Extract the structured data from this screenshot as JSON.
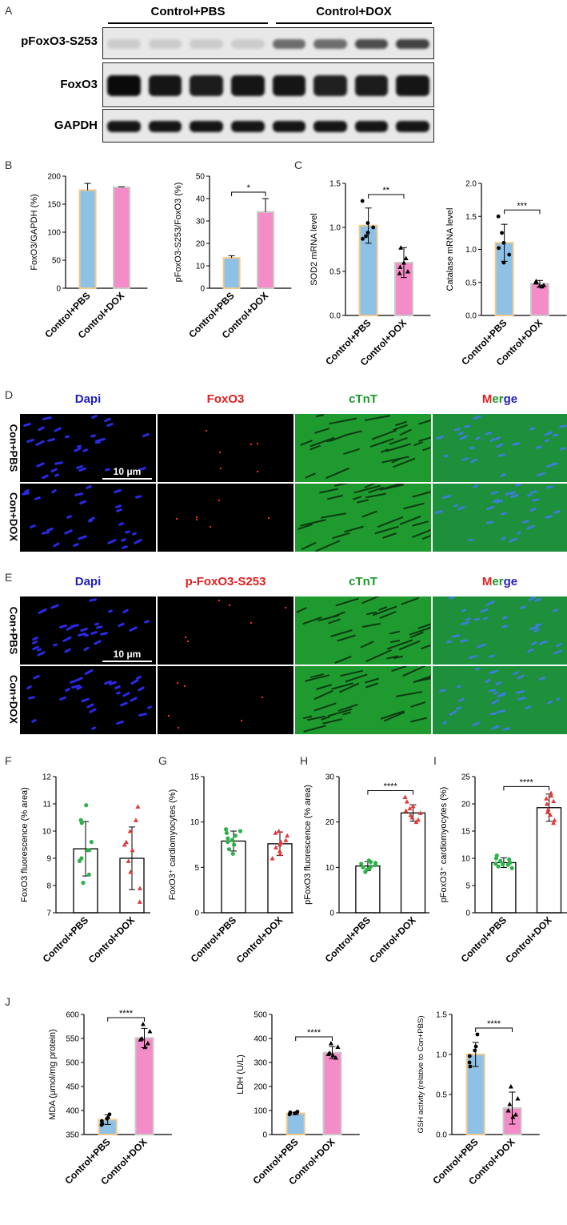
{
  "panels": {
    "A": "A",
    "B": "B",
    "C": "C",
    "D": "D",
    "E": "E",
    "F": "F",
    "G": "G",
    "H": "H",
    "I": "I",
    "J": "J"
  },
  "colors": {
    "pbs": "#8ec1e6",
    "dox": "#f48cc7",
    "pbs_edge": "#f0c98b",
    "dox_edge": "#c9c9c9",
    "green": "#2db24a",
    "red": "#e23a3a",
    "blue_dapi": "#1f1fbf",
    "cTnT_green": "#1f9a2f"
  },
  "blot": {
    "groups": [
      "Control+PBS",
      "Control+DOX"
    ],
    "rows": [
      {
        "label": "pFoxO3-S253",
        "intensity": [
          0.12,
          0.12,
          0.12,
          0.12,
          0.55,
          0.55,
          0.7,
          0.75
        ]
      },
      {
        "label": "FoxO3",
        "intensity": [
          1,
          0.95,
          0.92,
          0.95,
          0.95,
          0.9,
          0.92,
          0.95
        ]
      },
      {
        "label": "GAPDH",
        "intensity": [
          0.95,
          0.95,
          0.95,
          0.95,
          0.95,
          0.95,
          0.95,
          0.95
        ]
      }
    ]
  },
  "micro": {
    "D": {
      "headers": [
        "Dapi",
        "FoxO3",
        "cTnT",
        "Merge"
      ],
      "rows": [
        "Con+PBS",
        "Con+DOX"
      ],
      "scalebar": "10 μm"
    },
    "E": {
      "headers": [
        "Dapi",
        "p-FoxO3-S253",
        "cTnT",
        "Merge"
      ],
      "rows": [
        "Con+PBS",
        "Con+DOX"
      ],
      "scalebar": "10 μm"
    }
  },
  "chart_data": [
    {
      "id": "B1",
      "type": "bar",
      "categories": [
        "Control+PBS",
        "Control+DOX"
      ],
      "values": [
        175,
        180
      ],
      "errors": [
        12,
        1
      ],
      "ylabel": "FoxO3/GAPDH (%)",
      "ylim": [
        0,
        200
      ],
      "yticks": [
        0,
        50,
        100,
        150,
        200
      ],
      "sig": ""
    },
    {
      "id": "B2",
      "type": "bar",
      "categories": [
        "Control+PBS",
        "Control+DOX"
      ],
      "values": [
        13.5,
        34
      ],
      "errors": [
        1,
        6
      ],
      "ylabel": "pFoxO3-S253/FoxO3 (%)",
      "ylim": [
        0,
        50
      ],
      "yticks": [
        0,
        10,
        20,
        30,
        40,
        50
      ],
      "sig": "*"
    },
    {
      "id": "C1",
      "type": "bar",
      "categories": [
        "Control+PBS",
        "Control+DOX"
      ],
      "values": [
        1.02,
        0.6
      ],
      "errors": [
        0.2,
        0.17
      ],
      "ylabel": "SOD2 mRNA level",
      "ylim": [
        0,
        1.5
      ],
      "yticks": [
        0.0,
        0.5,
        1.0,
        1.5
      ],
      "sig": "**",
      "points": [
        [
          1.3,
          0.94,
          0.87,
          1.05,
          1.0,
          0.9
        ],
        [
          0.77,
          0.6,
          0.55,
          0.5,
          0.65,
          0.48
        ]
      ]
    },
    {
      "id": "C2",
      "type": "bar",
      "categories": [
        "Control+PBS",
        "Control+DOX"
      ],
      "values": [
        1.1,
        0.48
      ],
      "errors": [
        0.28,
        0.05
      ],
      "ylabel": "Catalase mRNA level",
      "ylim": [
        0,
        2.0
      ],
      "yticks": [
        0.0,
        0.5,
        1.0,
        1.5,
        2.0
      ],
      "sig": "***",
      "points": [
        [
          1.5,
          1.1,
          1.02,
          0.8,
          0.92,
          1.25
        ],
        [
          0.5,
          0.45,
          0.52,
          0.46,
          0.44,
          0.5
        ]
      ]
    },
    {
      "id": "F",
      "type": "bar",
      "categories": [
        "Control+PBS",
        "Control+DOX"
      ],
      "values": [
        9.35,
        9.0
      ],
      "errors": [
        1.0,
        1.15
      ],
      "ylabel": "FoxO3 fluorescence (% area)",
      "ylim": [
        7,
        12
      ],
      "yticks": [
        7,
        8,
        9,
        10,
        11,
        12
      ],
      "sig": "",
      "points": [
        [
          10.95,
          10.4,
          10.3,
          9.3,
          9.6,
          8.4,
          8.1,
          9.0,
          9.3,
          8.9
        ],
        [
          10.9,
          10.4,
          10.0,
          9.5,
          9.6,
          9.3,
          8.9,
          8.5,
          7.9,
          7.4
        ]
      ]
    },
    {
      "id": "G",
      "type": "bar",
      "categories": [
        "Control+PBS",
        "Control+DOX"
      ],
      "values": [
        7.9,
        7.6
      ],
      "errors": [
        1.1,
        1.3
      ],
      "ylabel": "FoxO3⁺ cardiomyocytes (%)",
      "ylim": [
        0,
        15
      ],
      "yticks": [
        0,
        5,
        10,
        15
      ],
      "sig": "",
      "points": [
        [
          9.2,
          8.8,
          8.5,
          8.0,
          7.8,
          7.5,
          7.0,
          6.5,
          8.2,
          9.0
        ],
        [
          9.0,
          8.5,
          8.0,
          7.5,
          7.2,
          6.8,
          6.0,
          7.8,
          8.8,
          6.5
        ]
      ]
    },
    {
      "id": "H",
      "type": "bar",
      "categories": [
        "Control+PBS",
        "Control+DOX"
      ],
      "values": [
        10.3,
        22.0
      ],
      "errors": [
        1.0,
        1.8
      ],
      "ylabel": "pFoxO3 fluorescence (% area)",
      "ylim": [
        0,
        30
      ],
      "yticks": [
        0,
        10,
        20,
        30
      ],
      "sig": "****",
      "points": [
        [
          11.5,
          11,
          10.5,
          10,
          9.5,
          9,
          10.8,
          10.2,
          9.8,
          11.2
        ],
        [
          25.5,
          24.5,
          23,
          22,
          21.5,
          21,
          20.5,
          20,
          23.5,
          22.5
        ]
      ]
    },
    {
      "id": "I",
      "type": "bar",
      "categories": [
        "Control+PBS",
        "Control+DOX"
      ],
      "values": [
        9.2,
        19.3
      ],
      "errors": [
        0.9,
        2.5
      ],
      "ylabel": "pFoxO3⁺ cardiomyocytes (%)",
      "ylim": [
        0,
        25
      ],
      "yticks": [
        0,
        5,
        10,
        15,
        20,
        25
      ],
      "sig": "****",
      "points": [
        [
          10.5,
          9.8,
          9.5,
          9.0,
          8.8,
          8.5,
          8.2,
          9.2,
          10.0,
          8.9
        ],
        [
          22,
          21,
          20.5,
          20,
          19,
          18.5,
          18,
          17,
          16.5,
          21.5
        ]
      ]
    },
    {
      "id": "J1",
      "type": "bar",
      "categories": [
        "Control+PBS",
        "Control+DOX"
      ],
      "values": [
        381,
        551
      ],
      "errors": [
        10,
        20
      ],
      "ylabel": "MDA (μmol/mg protein)",
      "ylim": [
        350,
        600
      ],
      "yticks": [
        350,
        400,
        450,
        500,
        550,
        600
      ],
      "sig": "****",
      "points": [
        [
          392,
          385,
          383,
          378,
          370,
          372
        ],
        [
          580,
          565,
          550,
          548,
          540,
          532
        ]
      ]
    },
    {
      "id": "J2",
      "type": "bar",
      "categories": [
        "Control+PBS",
        "Control+DOX"
      ],
      "values": [
        88,
        341
      ],
      "errors": [
        5,
        25
      ],
      "ylabel": "LDH (U/L)",
      "ylim": [
        0,
        500
      ],
      "yticks": [
        0,
        100,
        200,
        300,
        400,
        500
      ],
      "sig": "****",
      "points": [
        [
          95,
          90,
          88,
          85,
          84,
          92
        ],
        [
          380,
          365,
          340,
          335,
          320,
          330
        ]
      ]
    },
    {
      "id": "J3",
      "type": "bar",
      "categories": [
        "Control+PBS",
        "Control+DOX"
      ],
      "values": [
        1.0,
        0.33
      ],
      "errors": [
        0.15,
        0.2
      ],
      "ylabel": "GSH activity (relative to Con+PBS)",
      "ylim": [
        0,
        1.5
      ],
      "yticks": [
        0.0,
        0.5,
        1.0,
        1.5
      ],
      "sig": "****",
      "points": [
        [
          1.25,
          1.1,
          1.05,
          0.98,
          0.9,
          0.85
        ],
        [
          0.6,
          0.45,
          0.38,
          0.3,
          0.25,
          0.22
        ]
      ]
    }
  ]
}
